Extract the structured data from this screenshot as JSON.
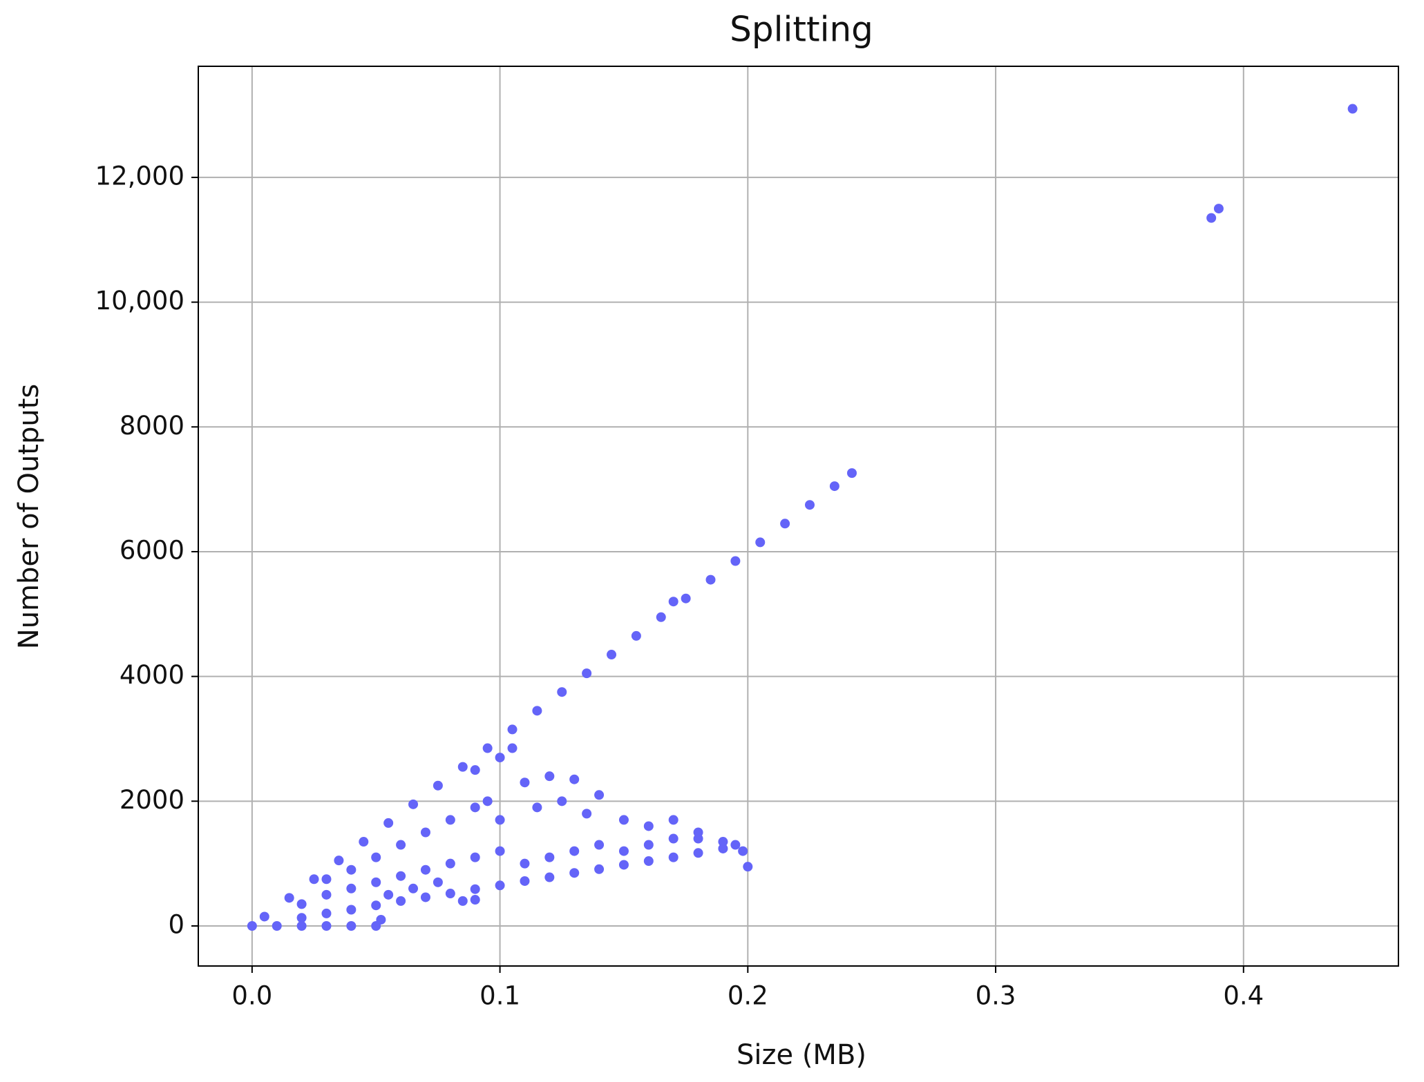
{
  "chart_data": {
    "type": "scatter",
    "title": "Splitting",
    "x_label": "Size (MB)",
    "y_label": "Number of Outputs",
    "color": "#6464f8",
    "grid": true,
    "xlim": [
      -0.0217,
      0.4625
    ],
    "ylim": [
      -642,
      13781
    ],
    "xticks": [
      {
        "value": 0,
        "label": "0.0"
      },
      0.1,
      0.2,
      0.3,
      0.4
    ],
    "yticks": [
      0,
      2000,
      4000,
      6000,
      {
        "value": 8000,
        "label": "8000"
      },
      {
        "value": 10000,
        "label": "10,000"
      },
      {
        "value": 12000,
        "label": "12,000"
      }
    ],
    "x": [
      0.005,
      0.015,
      0.025,
      0.035,
      0.045,
      0.055,
      0.065,
      0.075,
      0.085,
      0.095,
      0.105,
      0.115,
      0.125,
      0.135,
      0.145,
      0.155,
      0.165,
      0.175,
      0.185,
      0.195,
      0.205,
      0.215,
      0.225,
      0.235,
      0.242,
      0.17,
      0.02,
      0.03,
      0.04,
      0.05,
      0.06,
      0.07,
      0.08,
      0.09,
      0.1,
      0.11,
      0.12,
      0.13,
      0.14,
      0.15,
      0.16,
      0.17,
      0.18,
      0.19,
      0.195,
      0.198,
      0.2,
      0.085,
      0.09,
      0.02,
      0.03,
      0.03,
      0.04,
      0.04,
      0.05,
      0.05,
      0.06,
      0.06,
      0.07,
      0.07,
      0.08,
      0.08,
      0.09,
      0.09,
      0.1,
      0.11,
      0.12,
      0.13,
      0.14,
      0.15,
      0.16,
      0.17,
      0.18,
      0.19,
      0.055,
      0.065,
      0.075,
      0.11,
      0.12,
      0.13,
      0.14,
      0.105,
      0.1,
      0.09,
      0.095,
      0.1,
      0.115,
      0.125,
      0.135,
      0.15,
      0.16,
      0.17,
      0.18,
      0,
      0.01,
      0.02,
      0.03,
      0.04,
      0.05,
      0.052,
      0.444,
      0.39,
      0.387
    ],
    "values": [
      150,
      450,
      750,
      1050,
      1350,
      1650,
      1950,
      2250,
      2550,
      2850,
      3150,
      3450,
      3750,
      4050,
      4350,
      4650,
      4950,
      5250,
      5550,
      5850,
      6150,
      6450,
      6750,
      7050,
      7260,
      5200,
      130,
      200,
      260,
      330,
      400,
      460,
      520,
      590,
      650,
      720,
      780,
      850,
      910,
      980,
      1040,
      1100,
      1170,
      1240,
      1300,
      1200,
      950,
      400,
      420,
      350,
      500,
      750,
      600,
      900,
      700,
      1100,
      800,
      1300,
      900,
      1500,
      1000,
      1700,
      1100,
      1900,
      1200,
      1000,
      1100,
      1200,
      1300,
      1200,
      1300,
      1400,
      1400,
      1350,
      500,
      600,
      700,
      2300,
      2400,
      2350,
      2100,
      2850,
      2700,
      2500,
      2000,
      1700,
      1900,
      2000,
      1800,
      1700,
      1600,
      1700,
      1500,
      0,
      0,
      0,
      0,
      0,
      0,
      100,
      13100,
      11500,
      11350
    ]
  }
}
